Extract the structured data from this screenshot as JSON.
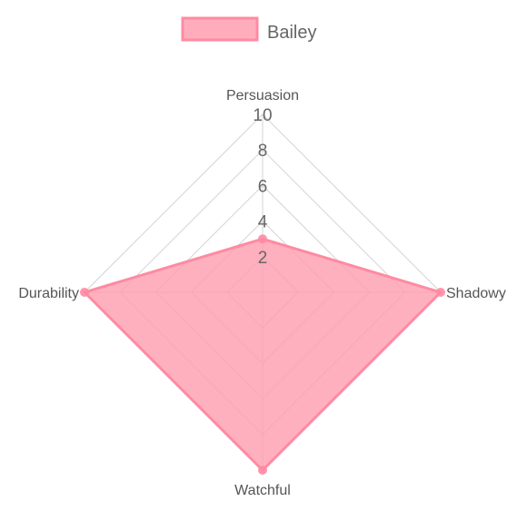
{
  "chart_data": {
    "type": "radar",
    "categories": [
      "Persuasion",
      "Shadowy",
      "Watchful",
      "Durability"
    ],
    "series": [
      {
        "name": "Bailey",
        "values": [
          3,
          10,
          10,
          10
        ],
        "fill": "#ff9fb0",
        "stroke": "#ff8aa2"
      }
    ],
    "rlim": [
      0,
      10
    ],
    "ticks": [
      "2",
      "4",
      "6",
      "8",
      "10"
    ],
    "grid": true,
    "legend": "top"
  }
}
